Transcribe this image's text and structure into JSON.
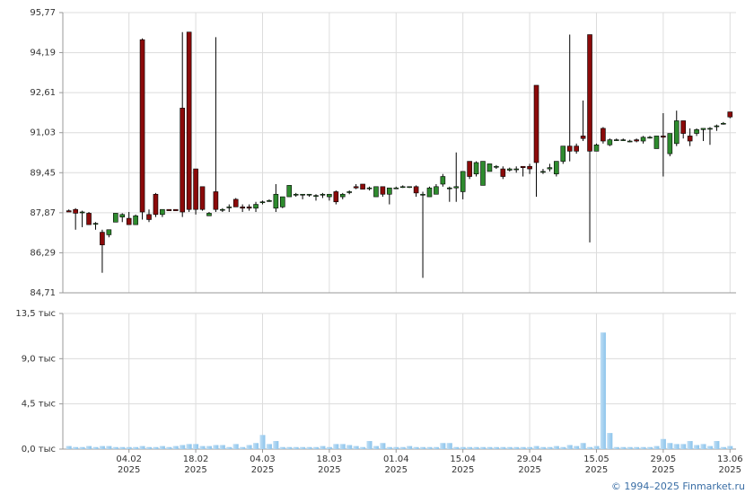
{
  "chart_data": [
    {
      "type": "candlestick",
      "open": [
        87.95,
        88.0,
        87.9,
        87.85,
        87.45,
        87.1,
        87.0,
        87.5,
        87.7,
        87.65,
        87.4,
        94.7,
        87.8,
        88.6,
        87.8,
        88.0,
        88.0,
        92.0,
        95.0,
        89.6,
        88.9,
        87.75,
        88.7,
        88.0,
        88.1,
        88.4,
        88.1,
        88.1,
        88.05,
        88.3,
        88.35,
        88.05,
        88.1,
        88.5,
        88.6,
        88.6,
        88.6,
        88.55,
        88.6,
        88.5,
        88.7,
        88.5,
        88.7,
        88.9,
        89.0,
        88.85,
        88.5,
        88.9,
        88.6,
        88.85,
        88.9,
        88.9,
        88.9,
        88.6,
        88.5,
        88.6,
        89.0,
        88.85,
        88.85,
        88.7,
        89.9,
        89.4,
        88.95,
        89.5,
        89.7,
        89.6,
        89.55,
        89.6,
        89.7,
        89.7,
        92.9,
        89.5,
        89.6,
        89.4,
        89.9,
        90.5,
        90.5,
        90.9,
        94.9,
        90.3,
        91.2,
        90.55,
        90.75,
        90.75,
        90.7,
        90.75,
        90.7,
        90.85,
        90.4,
        90.9,
        90.2,
        90.6,
        91.5,
        90.9,
        91.0,
        91.15,
        91.2,
        91.3,
        91.4,
        91.85
      ],
      "high": [
        88.0,
        88.05,
        87.95,
        87.9,
        87.5,
        87.2,
        87.2,
        87.85,
        87.85,
        87.9,
        87.8,
        94.75,
        88.0,
        88.65,
        88.0,
        88.0,
        88.0,
        95.0,
        95.0,
        89.6,
        88.9,
        87.9,
        94.8,
        88.05,
        88.2,
        88.45,
        88.2,
        88.2,
        88.3,
        88.35,
        88.4,
        89.0,
        88.5,
        88.95,
        88.65,
        88.6,
        88.6,
        88.6,
        88.65,
        88.6,
        88.75,
        88.65,
        88.75,
        89.0,
        89.0,
        88.9,
        88.9,
        88.9,
        88.85,
        88.9,
        88.95,
        88.9,
        88.95,
        88.7,
        88.9,
        89.0,
        89.4,
        88.9,
        90.25,
        89.5,
        89.9,
        89.9,
        89.9,
        89.8,
        89.75,
        89.7,
        89.65,
        89.7,
        89.7,
        89.8,
        92.9,
        89.6,
        89.8,
        89.9,
        90.5,
        94.9,
        90.6,
        92.3,
        94.9,
        90.6,
        91.25,
        90.8,
        90.8,
        90.8,
        90.75,
        90.8,
        90.9,
        90.9,
        90.9,
        91.8,
        91.0,
        91.9,
        91.5,
        91.2,
        91.2,
        91.2,
        91.25,
        91.35,
        91.45,
        91.85
      ],
      "low": [
        87.9,
        87.2,
        87.3,
        87.4,
        87.2,
        85.5,
        86.9,
        87.5,
        87.5,
        87.4,
        87.4,
        87.6,
        87.5,
        87.7,
        87.7,
        87.95,
        87.95,
        87.7,
        87.9,
        87.8,
        87.95,
        87.75,
        87.9,
        87.9,
        87.9,
        88.1,
        87.9,
        87.95,
        87.9,
        88.2,
        88.3,
        87.9,
        88.05,
        88.5,
        88.5,
        88.4,
        88.5,
        88.35,
        88.45,
        88.35,
        88.2,
        88.4,
        88.6,
        88.8,
        88.8,
        88.75,
        88.5,
        88.5,
        88.2,
        88.85,
        88.85,
        88.85,
        88.5,
        85.3,
        88.5,
        88.6,
        88.9,
        88.3,
        88.3,
        88.4,
        89.2,
        89.3,
        88.95,
        89.5,
        89.6,
        89.2,
        89.5,
        89.45,
        89.3,
        89.4,
        88.5,
        89.4,
        89.5,
        89.3,
        89.8,
        89.9,
        90.2,
        90.7,
        86.7,
        90.3,
        90.6,
        90.5,
        90.7,
        90.7,
        90.65,
        90.65,
        90.6,
        90.8,
        90.4,
        89.3,
        90.1,
        90.5,
        90.8,
        90.5,
        90.9,
        90.7,
        90.55,
        91.1,
        91.35,
        91.6
      ],
      "close": [
        87.9,
        87.85,
        87.9,
        87.4,
        87.45,
        86.6,
        87.2,
        87.85,
        87.8,
        87.4,
        87.75,
        87.9,
        87.6,
        87.8,
        88.0,
        87.95,
        87.95,
        87.9,
        88.0,
        88.0,
        88.0,
        87.85,
        88.0,
        88.0,
        88.1,
        88.1,
        88.05,
        88.05,
        88.2,
        88.3,
        88.35,
        88.6,
        88.5,
        88.95,
        88.6,
        88.6,
        88.6,
        88.55,
        88.6,
        88.6,
        88.3,
        88.6,
        88.7,
        88.85,
        88.8,
        88.85,
        88.9,
        88.6,
        88.85,
        88.85,
        88.9,
        88.9,
        88.65,
        88.6,
        88.85,
        88.9,
        89.3,
        88.85,
        88.9,
        89.5,
        89.3,
        89.85,
        89.9,
        89.8,
        89.7,
        89.3,
        89.6,
        89.6,
        89.65,
        89.6,
        89.85,
        89.5,
        89.65,
        89.9,
        90.5,
        90.3,
        90.3,
        90.8,
        90.3,
        90.55,
        90.7,
        90.75,
        90.75,
        90.75,
        90.7,
        90.7,
        90.85,
        90.85,
        90.9,
        90.85,
        91.0,
        91.5,
        91.0,
        90.7,
        91.15,
        91.2,
        91.2,
        91.3,
        91.4,
        91.65
      ],
      "up_color": "#2e8b2e",
      "down_color": "#8b0a0a",
      "ylim": [
        84.71,
        95.77
      ],
      "yticks": [
        {
          "value": 84.71,
          "label": "84,71"
        },
        {
          "value": 86.29,
          "label": "86,29"
        },
        {
          "value": 87.87,
          "label": "87,87"
        },
        {
          "value": 89.45,
          "label": "89,45"
        },
        {
          "value": 91.03,
          "label": "91,03"
        },
        {
          "value": 92.61,
          "label": "92,61"
        },
        {
          "value": 94.19,
          "label": "94,19"
        },
        {
          "value": 95.77,
          "label": "95,77"
        }
      ],
      "grid": true
    },
    {
      "type": "bar",
      "categories": [
        null,
        null,
        null,
        null,
        null,
        null,
        null,
        null,
        null,
        "04.02 2025",
        null,
        null,
        null,
        null,
        null,
        null,
        null,
        null,
        null,
        "18.02 2025",
        null,
        null,
        null,
        null,
        null,
        null,
        null,
        null,
        null,
        "04.03 2025",
        null,
        null,
        null,
        null,
        null,
        null,
        null,
        null,
        null,
        "18.03 2025",
        null,
        null,
        null,
        null,
        null,
        null,
        null,
        null,
        null,
        "01.04 2025",
        null,
        null,
        null,
        null,
        null,
        null,
        null,
        null,
        null,
        "15.04 2025",
        null,
        null,
        null,
        null,
        null,
        null,
        null,
        null,
        null,
        "29.04 2025",
        null,
        null,
        null,
        null,
        null,
        null,
        null,
        null,
        null,
        "15.05 2025",
        null,
        null,
        null,
        null,
        null,
        null,
        null,
        null,
        null,
        "29.05 2025",
        null,
        null,
        null,
        null,
        null,
        null,
        null,
        null,
        null,
        "13.06 2025"
      ],
      "values": [
        0.3,
        0.2,
        0.2,
        0.3,
        0.2,
        0.3,
        0.3,
        0.2,
        0.2,
        0.2,
        0.2,
        0.3,
        0.2,
        0.2,
        0.3,
        0.2,
        0.3,
        0.4,
        0.5,
        0.5,
        0.3,
        0.3,
        0.4,
        0.4,
        0.2,
        0.5,
        0.2,
        0.4,
        0.6,
        1.4,
        0.5,
        0.8,
        0.2,
        0.2,
        0.2,
        0.2,
        0.2,
        0.2,
        0.3,
        0.2,
        0.5,
        0.5,
        0.4,
        0.3,
        0.2,
        0.8,
        0.3,
        0.6,
        0.2,
        0.2,
        0.2,
        0.3,
        0.2,
        0.2,
        0.2,
        0.2,
        0.6,
        0.6,
        0.2,
        0.2,
        0.2,
        0.2,
        0.2,
        0.2,
        0.2,
        0.2,
        0.2,
        0.2,
        0.2,
        0.2,
        0.3,
        0.2,
        0.2,
        0.3,
        0.2,
        0.4,
        0.3,
        0.6,
        0.2,
        0.3,
        11.6,
        1.6,
        0.2,
        0.2,
        0.2,
        0.2,
        0.2,
        0.2,
        0.3,
        1.0,
        0.6,
        0.5,
        0.5,
        0.8,
        0.4,
        0.5,
        0.3,
        0.8,
        0.2,
        0.3
      ],
      "color": "#8cc4ec",
      "ylim": [
        0,
        13.5
      ],
      "yticks": [
        {
          "value": 0,
          "label": "0,0 тыс"
        },
        {
          "value": 4.5,
          "label": "4,5 тыс"
        },
        {
          "value": 9,
          "label": "9,0 тыс"
        },
        {
          "value": 13.5,
          "label": "13,5 тыс"
        }
      ],
      "grid": true
    }
  ],
  "footer": "© 1994–2025 Finmarket.ru"
}
